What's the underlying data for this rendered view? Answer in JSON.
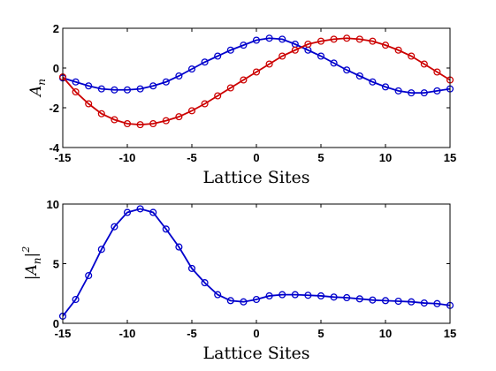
{
  "chart_data": [
    {
      "type": "line",
      "title": "",
      "xlabel": "Lattice Sites",
      "ylabel": {
        "base": "A",
        "sub": "n"
      },
      "xlim": [
        -15,
        15
      ],
      "ylim": [
        -4,
        2
      ],
      "xticks": [
        -15,
        -10,
        -5,
        0,
        5,
        10,
        15
      ],
      "yticks": [
        -4,
        -2,
        0,
        2
      ],
      "markers": "circle",
      "grid": false,
      "legend": "none",
      "series": [
        {
          "color": "#0000cc",
          "x": [
            -15,
            -14,
            -13,
            -12,
            -11,
            -10,
            -9,
            -8,
            -7,
            -6,
            -5,
            -4,
            -3,
            -2,
            -1,
            0,
            1,
            2,
            3,
            4,
            5,
            6,
            7,
            8,
            9,
            10,
            11,
            12,
            13,
            14,
            15
          ],
          "y": [
            -0.5,
            -0.7,
            -0.9,
            -1.05,
            -1.1,
            -1.1,
            -1.05,
            -0.9,
            -0.7,
            -0.4,
            -0.05,
            0.3,
            0.6,
            0.9,
            1.15,
            1.4,
            1.5,
            1.45,
            1.2,
            0.9,
            0.6,
            0.25,
            -0.1,
            -0.4,
            -0.7,
            -0.95,
            -1.15,
            -1.25,
            -1.25,
            -1.15,
            -1.05
          ]
        },
        {
          "color": "#cc0000",
          "x": [
            -15,
            -14,
            -13,
            -12,
            -11,
            -10,
            -9,
            -8,
            -7,
            -6,
            -5,
            -4,
            -3,
            -2,
            -1,
            0,
            1,
            2,
            3,
            4,
            5,
            6,
            7,
            8,
            9,
            10,
            11,
            12,
            13,
            14,
            15
          ],
          "y": [
            -0.45,
            -1.2,
            -1.8,
            -2.3,
            -2.6,
            -2.8,
            -2.85,
            -2.8,
            -2.65,
            -2.45,
            -2.15,
            -1.8,
            -1.4,
            -1.0,
            -0.6,
            -0.2,
            0.2,
            0.6,
            0.9,
            1.2,
            1.35,
            1.45,
            1.5,
            1.45,
            1.35,
            1.15,
            0.9,
            0.6,
            0.2,
            -0.2,
            -0.6
          ]
        }
      ]
    },
    {
      "type": "line",
      "title": "",
      "xlabel": "Lattice Sites",
      "ylabel": {
        "base": "|A",
        "sub": "n",
        "end": "|",
        "sup": "2"
      },
      "xlim": [
        -15,
        15
      ],
      "ylim": [
        0,
        10
      ],
      "xticks": [
        -15,
        -10,
        -5,
        0,
        5,
        10,
        15
      ],
      "yticks": [
        0,
        5,
        10
      ],
      "markers": "circle",
      "grid": false,
      "legend": "none",
      "series": [
        {
          "color": "#0000cc",
          "x": [
            -15,
            -14,
            -13,
            -12,
            -11,
            -10,
            -9,
            -8,
            -7,
            -6,
            -5,
            -4,
            -3,
            -2,
            -1,
            0,
            1,
            2,
            3,
            4,
            5,
            6,
            7,
            8,
            9,
            10,
            11,
            12,
            13,
            14,
            15
          ],
          "y": [
            0.6,
            2.0,
            4.0,
            6.2,
            8.1,
            9.3,
            9.6,
            9.3,
            7.9,
            6.4,
            4.6,
            3.4,
            2.4,
            1.9,
            1.8,
            2.0,
            2.3,
            2.4,
            2.4,
            2.35,
            2.3,
            2.2,
            2.15,
            2.05,
            1.95,
            1.9,
            1.85,
            1.8,
            1.7,
            1.65,
            1.5
          ]
        }
      ]
    }
  ]
}
